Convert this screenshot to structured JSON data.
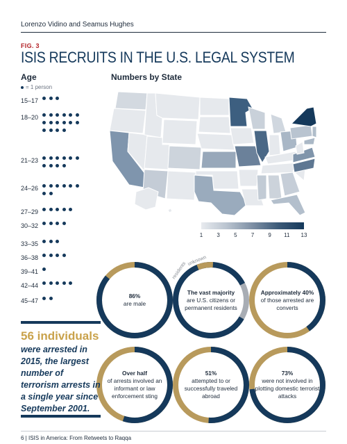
{
  "header": {
    "authors": "Lorenzo Vidino and Seamus Hughes"
  },
  "figure": {
    "label": "FIG. 3",
    "title": "ISIS RECRUITS IN THE U.S. LEGAL SYSTEM"
  },
  "age_section": {
    "title": "Age",
    "legend": "= 1 person"
  },
  "state_section": {
    "title": "Numbers by State"
  },
  "chart_data": [
    {
      "type": "bar",
      "title": "Age",
      "categories": [
        "15–17",
        "18–20",
        "21–23",
        "24–26",
        "27–29",
        "30–32",
        "33–35",
        "36–38",
        "39–41",
        "42–44",
        "45–47"
      ],
      "values": [
        3,
        16,
        10,
        8,
        5,
        4,
        3,
        4,
        1,
        5,
        2
      ],
      "unit": "= 1 person"
    },
    {
      "type": "heatmap",
      "title": "Numbers by State",
      "scale_ticks": [
        1,
        3,
        5,
        7,
        9,
        11,
        13
      ],
      "colors": {
        "low": "#e8ebef",
        "high": "#15395b"
      },
      "dark_states": [
        "NY",
        "MN"
      ],
      "mid_states": [
        "IL",
        "CA",
        "NC",
        "VA",
        "MO",
        "KS"
      ],
      "light_states": [
        "TX",
        "FL",
        "AZ",
        "OH",
        "PA",
        "NJ",
        "MD",
        "MI",
        "WI",
        "GA",
        "AL",
        "CO",
        "MS",
        "WA"
      ]
    },
    {
      "type": "pie",
      "items": [
        {
          "strong": "86%",
          "text": "are male",
          "value": 86
        },
        {
          "strong": "The vast majority",
          "text": "are U.S. citizens or permanent residents",
          "value": 92,
          "arc_labels": [
            "residents",
            "unknown"
          ]
        },
        {
          "strong": "Approximately 40%",
          "text": "of those arrested are converts",
          "value": 40
        },
        {
          "strong": "Over half",
          "text": "of arrests involved an informant or law enforcement sting",
          "value": 55
        },
        {
          "strong": "51%",
          "text": "attempted to or successfully traveled abroad",
          "value": 51
        },
        {
          "strong": "73%",
          "text": "were not involved in plotting domestic terrorist attacks",
          "value": 73
        }
      ]
    }
  ],
  "summary": {
    "number": "56 individuals",
    "text": "were arrested in 2015, the largest number of terrorism arrests in a single year since September 2001."
  },
  "colors": {
    "navy": "#15395b",
    "gold": "#b89a5c",
    "gray": "#a8adb4"
  },
  "footer": {
    "text": "6  |  ISIS in America: From Retweets to Raqqa"
  }
}
